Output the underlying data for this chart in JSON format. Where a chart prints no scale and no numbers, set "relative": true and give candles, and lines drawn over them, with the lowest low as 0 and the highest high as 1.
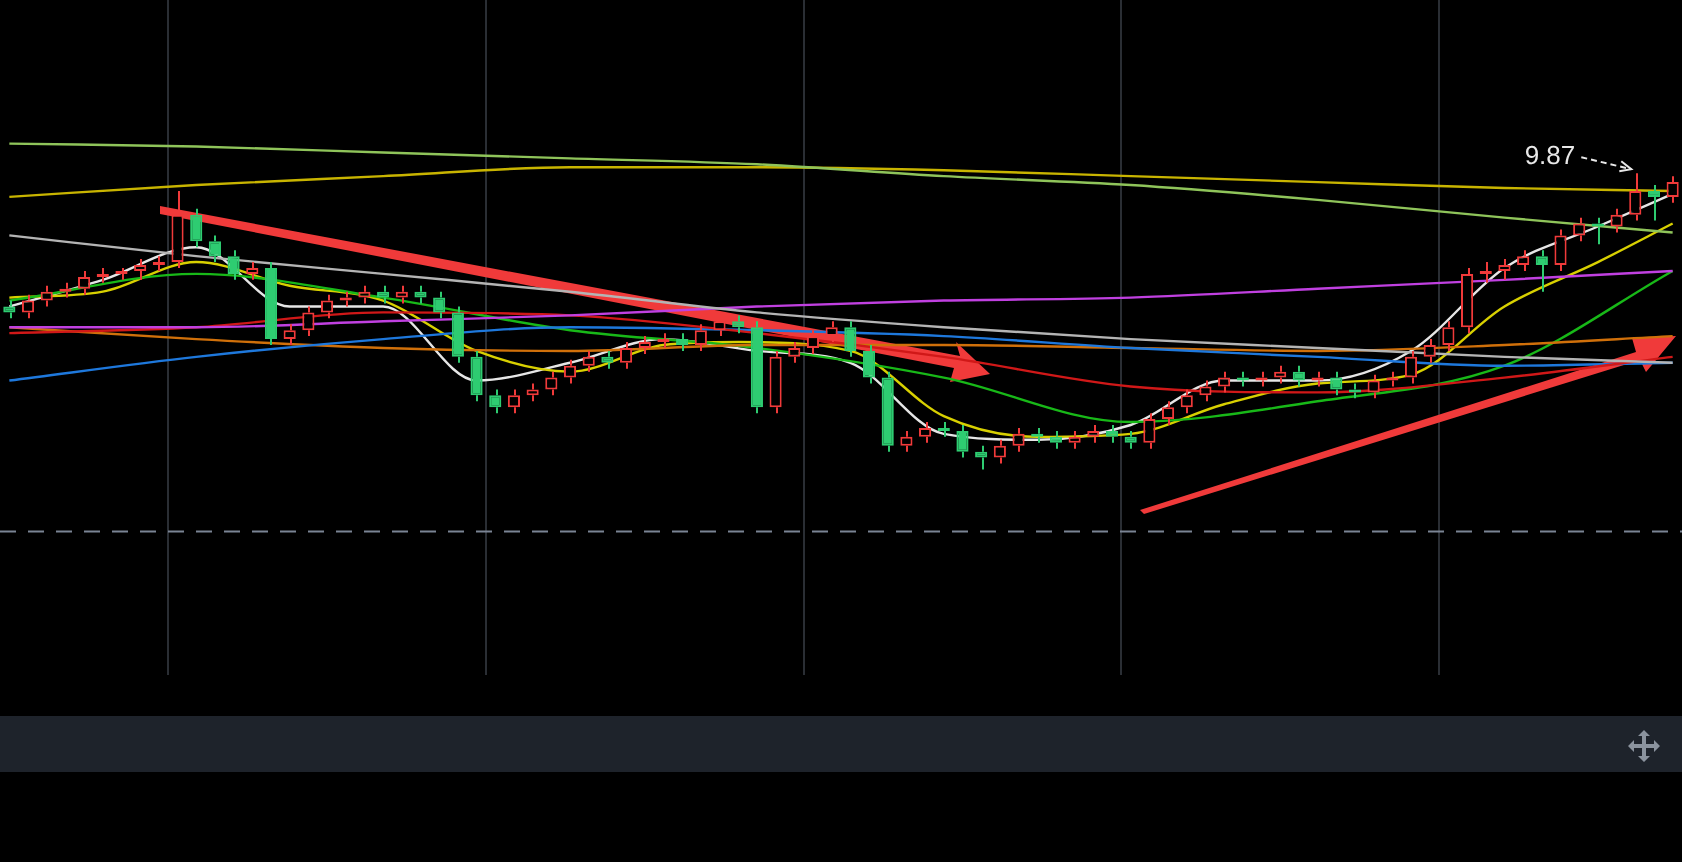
{
  "chart_data": {
    "type": "candlestick",
    "relative": true,
    "grid": "x",
    "legend": false,
    "categories": [
      null,
      null,
      null,
      null,
      null,
      null,
      null,
      null,
      null,
      null,
      null,
      null,
      null,
      null,
      null,
      null,
      null,
      null,
      null,
      null,
      null,
      null,
      null,
      null,
      null,
      null,
      null,
      null,
      null,
      null,
      null,
      null,
      null,
      null,
      null,
      null,
      null,
      null,
      null,
      null,
      null,
      null,
      null,
      null,
      null,
      null,
      null,
      null,
      null,
      null,
      null,
      null,
      null,
      null,
      null,
      null,
      null,
      null,
      null,
      null,
      null,
      null,
      null,
      null,
      null,
      null,
      null,
      null,
      null,
      null,
      null,
      null,
      null,
      null,
      null,
      null,
      null,
      null,
      null,
      null,
      null,
      null,
      null,
      null,
      null,
      null,
      null,
      null,
      null,
      null
    ],
    "ohlc": [
      [
        0.55,
        0.57,
        0.51,
        0.53
      ],
      [
        0.53,
        0.59,
        0.51,
        0.57
      ],
      [
        0.57,
        0.62,
        0.55,
        0.6
      ],
      [
        0.6,
        0.63,
        0.58,
        0.61
      ],
      [
        0.61,
        0.67,
        0.59,
        0.65
      ],
      [
        0.65,
        0.68,
        0.63,
        0.66
      ],
      [
        0.66,
        0.68,
        0.64,
        0.67
      ],
      [
        0.67,
        0.71,
        0.64,
        0.69
      ],
      [
        0.69,
        0.72,
        0.67,
        0.7
      ],
      [
        0.7,
        0.94,
        0.68,
        0.86
      ],
      [
        0.86,
        0.88,
        0.75,
        0.77
      ],
      [
        0.77,
        0.79,
        0.7,
        0.72
      ],
      [
        0.72,
        0.74,
        0.64,
        0.66
      ],
      [
        0.66,
        0.7,
        0.64,
        0.68
      ],
      [
        0.68,
        0.7,
        0.42,
        0.44
      ],
      [
        0.44,
        0.49,
        0.42,
        0.47
      ],
      [
        0.47,
        0.55,
        0.45,
        0.53
      ],
      [
        0.53,
        0.59,
        0.51,
        0.57
      ],
      [
        0.57,
        0.6,
        0.55,
        0.58
      ],
      [
        0.58,
        0.62,
        0.56,
        0.6
      ],
      [
        0.6,
        0.62,
        0.56,
        0.58
      ],
      [
        0.58,
        0.62,
        0.56,
        0.6
      ],
      [
        0.6,
        0.62,
        0.56,
        0.58
      ],
      [
        0.58,
        0.6,
        0.51,
        0.53
      ],
      [
        0.53,
        0.55,
        0.36,
        0.38
      ],
      [
        0.38,
        0.4,
        0.23,
        0.25
      ],
      [
        0.25,
        0.27,
        0.19,
        0.21
      ],
      [
        0.21,
        0.27,
        0.19,
        0.25
      ],
      [
        0.25,
        0.29,
        0.23,
        0.27
      ],
      [
        0.27,
        0.33,
        0.25,
        0.31
      ],
      [
        0.31,
        0.37,
        0.29,
        0.35
      ],
      [
        0.35,
        0.4,
        0.33,
        0.38
      ],
      [
        0.38,
        0.4,
        0.34,
        0.36
      ],
      [
        0.36,
        0.43,
        0.34,
        0.41
      ],
      [
        0.41,
        0.45,
        0.39,
        0.43
      ],
      [
        0.43,
        0.46,
        0.41,
        0.44
      ],
      [
        0.44,
        0.46,
        0.4,
        0.42
      ],
      [
        0.42,
        0.49,
        0.4,
        0.47
      ],
      [
        0.47,
        0.52,
        0.45,
        0.5
      ],
      [
        0.5,
        0.52,
        0.46,
        0.48
      ],
      [
        0.48,
        0.5,
        0.19,
        0.21
      ],
      [
        0.21,
        0.4,
        0.19,
        0.38
      ],
      [
        0.38,
        0.43,
        0.36,
        0.41
      ],
      [
        0.41,
        0.47,
        0.39,
        0.45
      ],
      [
        0.45,
        0.5,
        0.43,
        0.48
      ],
      [
        0.48,
        0.5,
        0.38,
        0.4
      ],
      [
        0.4,
        0.42,
        0.29,
        0.31
      ],
      [
        0.31,
        0.33,
        0.06,
        0.08
      ],
      [
        0.08,
        0.13,
        0.06,
        0.11
      ],
      [
        0.11,
        0.16,
        0.09,
        0.14
      ],
      [
        0.14,
        0.16,
        0.11,
        0.13
      ],
      [
        0.13,
        0.15,
        0.04,
        0.06
      ],
      [
        0.06,
        0.08,
        0.0,
        0.04
      ],
      [
        0.04,
        0.1,
        0.02,
        0.08
      ],
      [
        0.08,
        0.14,
        0.06,
        0.12
      ],
      [
        0.12,
        0.14,
        0.09,
        0.11
      ],
      [
        0.11,
        0.13,
        0.07,
        0.09
      ],
      [
        0.09,
        0.13,
        0.07,
        0.11
      ],
      [
        0.11,
        0.15,
        0.09,
        0.13
      ],
      [
        0.13,
        0.15,
        0.09,
        0.11
      ],
      [
        0.11,
        0.13,
        0.07,
        0.09
      ],
      [
        0.09,
        0.19,
        0.07,
        0.17
      ],
      [
        0.17,
        0.23,
        0.15,
        0.21
      ],
      [
        0.21,
        0.27,
        0.19,
        0.25
      ],
      [
        0.25,
        0.3,
        0.23,
        0.28
      ],
      [
        0.28,
        0.33,
        0.26,
        0.31
      ],
      [
        0.31,
        0.33,
        0.28,
        0.3
      ],
      [
        0.3,
        0.33,
        0.28,
        0.31
      ],
      [
        0.31,
        0.35,
        0.29,
        0.33
      ],
      [
        0.33,
        0.35,
        0.28,
        0.3
      ],
      [
        0.3,
        0.33,
        0.28,
        0.31
      ],
      [
        0.31,
        0.33,
        0.25,
        0.27
      ],
      [
        0.27,
        0.29,
        0.24,
        0.26
      ],
      [
        0.26,
        0.32,
        0.24,
        0.3
      ],
      [
        0.3,
        0.33,
        0.28,
        0.31
      ],
      [
        0.31,
        0.4,
        0.29,
        0.38
      ],
      [
        0.38,
        0.44,
        0.36,
        0.42
      ],
      [
        0.42,
        0.5,
        0.4,
        0.48
      ],
      [
        0.48,
        0.68,
        0.46,
        0.66
      ],
      [
        0.66,
        0.7,
        0.63,
        0.67
      ],
      [
        0.67,
        0.71,
        0.64,
        0.69
      ],
      [
        0.69,
        0.74,
        0.67,
        0.72
      ],
      [
        0.72,
        0.74,
        0.6,
        0.69
      ],
      [
        0.69,
        0.81,
        0.67,
        0.79
      ],
      [
        0.79,
        0.85,
        0.77,
        0.83
      ],
      [
        0.83,
        0.85,
        0.76,
        0.82
      ],
      [
        0.82,
        0.88,
        0.8,
        0.86
      ],
      [
        0.86,
        1.0,
        0.84,
        0.94
      ],
      [
        0.94,
        0.96,
        0.84,
        0.92
      ],
      [
        0.92,
        0.99,
        0.9,
        0.97
      ]
    ],
    "series": [
      {
        "type": "line",
        "color": "#8fc45a",
        "values": [
          1.1,
          null,
          null,
          null,
          null,
          null,
          null,
          null,
          null,
          null,
          1.09,
          null,
          null,
          null,
          null,
          null,
          null,
          null,
          null,
          null,
          1.07,
          null,
          null,
          null,
          null,
          null,
          null,
          null,
          null,
          null,
          1.05,
          null,
          null,
          null,
          null,
          null,
          null,
          null,
          null,
          null,
          1.03,
          null,
          null,
          null,
          null,
          null,
          null,
          null,
          null,
          null,
          0.99,
          null,
          null,
          null,
          null,
          null,
          null,
          null,
          null,
          null,
          0.96,
          null,
          null,
          null,
          null,
          null,
          null,
          null,
          null,
          null,
          0.91,
          null,
          null,
          null,
          null,
          null,
          null,
          null,
          null,
          null,
          0.85,
          null,
          null,
          null,
          null,
          null,
          null,
          null,
          null,
          0.8
        ]
      },
      {
        "type": "line",
        "color": "#c8b400",
        "values": [
          0.92,
          null,
          null,
          null,
          null,
          null,
          null,
          null,
          null,
          null,
          0.96,
          null,
          null,
          null,
          null,
          null,
          null,
          null,
          null,
          null,
          0.99,
          null,
          null,
          null,
          null,
          null,
          null,
          null,
          null,
          null,
          1.02,
          null,
          null,
          null,
          null,
          null,
          null,
          null,
          null,
          null,
          1.02,
          null,
          null,
          null,
          null,
          null,
          null,
          null,
          null,
          null,
          1.01,
          null,
          null,
          null,
          null,
          null,
          null,
          null,
          null,
          null,
          0.99,
          null,
          null,
          null,
          null,
          null,
          null,
          null,
          null,
          null,
          0.97,
          null,
          null,
          null,
          null,
          null,
          null,
          null,
          null,
          null,
          0.95,
          null,
          null,
          null,
          null,
          null,
          null,
          null,
          null,
          0.94
        ]
      },
      {
        "type": "line",
        "color": "#b4b4b4",
        "values": [
          0.79,
          null,
          null,
          null,
          null,
          null,
          null,
          null,
          null,
          null,
          0.72,
          null,
          null,
          null,
          null,
          null,
          null,
          null,
          null,
          null,
          0.66,
          null,
          null,
          null,
          null,
          null,
          null,
          null,
          null,
          null,
          0.6,
          null,
          null,
          null,
          null,
          null,
          null,
          null,
          null,
          null,
          0.53,
          null,
          null,
          null,
          null,
          null,
          null,
          null,
          null,
          null,
          0.48,
          null,
          null,
          null,
          null,
          null,
          null,
          null,
          null,
          null,
          0.44,
          null,
          null,
          null,
          null,
          null,
          null,
          null,
          null,
          null,
          0.41,
          null,
          null,
          null,
          null,
          null,
          null,
          null,
          null,
          null,
          0.38,
          null,
          null,
          null,
          null,
          null,
          null,
          null,
          null,
          0.36
        ]
      },
      {
        "type": "line",
        "color": "#c040e0",
        "values": [
          0.48,
          null,
          null,
          null,
          null,
          null,
          null,
          null,
          null,
          null,
          0.48,
          null,
          null,
          null,
          null,
          null,
          null,
          null,
          null,
          null,
          0.5,
          null,
          null,
          null,
          null,
          null,
          null,
          null,
          null,
          null,
          0.52,
          null,
          null,
          null,
          null,
          null,
          null,
          null,
          null,
          null,
          0.55,
          null,
          null,
          null,
          null,
          null,
          null,
          null,
          null,
          null,
          0.57,
          null,
          null,
          null,
          null,
          null,
          null,
          null,
          null,
          null,
          0.58,
          null,
          null,
          null,
          null,
          null,
          null,
          null,
          null,
          null,
          0.61,
          null,
          null,
          null,
          null,
          null,
          null,
          null,
          null,
          null,
          0.64,
          null,
          null,
          null,
          null,
          null,
          null,
          null,
          null,
          0.67
        ]
      },
      {
        "type": "line",
        "color": "#d01818",
        "values": [
          0.46,
          null,
          null,
          null,
          null,
          null,
          null,
          null,
          null,
          null,
          0.48,
          null,
          null,
          null,
          null,
          null,
          null,
          null,
          null,
          null,
          0.53,
          null,
          null,
          null,
          null,
          null,
          null,
          null,
          null,
          null,
          0.52,
          null,
          null,
          null,
          null,
          null,
          null,
          null,
          null,
          null,
          0.46,
          null,
          null,
          null,
          null,
          null,
          null,
          null,
          null,
          null,
          0.38,
          null,
          null,
          null,
          null,
          null,
          null,
          null,
          null,
          null,
          0.28,
          null,
          null,
          null,
          null,
          null,
          null,
          null,
          null,
          null,
          0.26,
          null,
          null,
          null,
          null,
          null,
          null,
          null,
          null,
          null,
          0.31,
          null,
          null,
          null,
          null,
          null,
          null,
          null,
          null,
          0.38
        ]
      },
      {
        "type": "line",
        "color": "#1e78dc",
        "values": [
          0.3,
          null,
          null,
          null,
          null,
          null,
          null,
          null,
          null,
          null,
          0.38,
          null,
          null,
          null,
          null,
          null,
          null,
          null,
          null,
          null,
          0.44,
          null,
          null,
          null,
          null,
          null,
          null,
          null,
          null,
          null,
          0.48,
          null,
          null,
          null,
          null,
          null,
          null,
          null,
          null,
          null,
          0.47,
          null,
          null,
          null,
          null,
          null,
          null,
          null,
          null,
          null,
          0.45,
          null,
          null,
          null,
          null,
          null,
          null,
          null,
          null,
          null,
          0.41,
          null,
          null,
          null,
          null,
          null,
          null,
          null,
          null,
          null,
          0.38,
          null,
          null,
          null,
          null,
          null,
          null,
          null,
          null,
          null,
          0.35,
          null,
          null,
          null,
          null,
          null,
          null,
          null,
          null,
          0.36
        ]
      },
      {
        "type": "line",
        "color": "#d0700a",
        "values": [
          0.48,
          null,
          null,
          null,
          null,
          null,
          null,
          null,
          null,
          null,
          0.44,
          null,
          null,
          null,
          null,
          null,
          null,
          null,
          null,
          null,
          0.41,
          null,
          null,
          null,
          null,
          null,
          null,
          null,
          null,
          null,
          0.4,
          null,
          null,
          null,
          null,
          null,
          null,
          null,
          null,
          null,
          0.42,
          null,
          null,
          null,
          null,
          null,
          null,
          null,
          null,
          null,
          0.42,
          null,
          null,
          null,
          null,
          null,
          null,
          null,
          null,
          null,
          0.41,
          null,
          null,
          null,
          null,
          null,
          null,
          null,
          null,
          null,
          0.4,
          null,
          null,
          null,
          null,
          null,
          null,
          null,
          null,
          null,
          0.42,
          null,
          null,
          null,
          null,
          null,
          null,
          null,
          null,
          0.45
        ]
      },
      {
        "type": "line",
        "color": "#18b818",
        "values": [
          0.57,
          null,
          null,
          null,
          null,
          null,
          null,
          null,
          null,
          null,
          0.66,
          null,
          null,
          null,
          null,
          null,
          null,
          null,
          null,
          null,
          0.58,
          null,
          null,
          null,
          null,
          null,
          null,
          null,
          null,
          null,
          0.47,
          null,
          null,
          null,
          null,
          null,
          null,
          null,
          null,
          null,
          0.41,
          null,
          null,
          null,
          null,
          null,
          null,
          null,
          null,
          null,
          0.31,
          null,
          null,
          null,
          null,
          null,
          null,
          null,
          null,
          null,
          0.16,
          null,
          null,
          null,
          null,
          null,
          null,
          null,
          null,
          null,
          0.23,
          null,
          null,
          null,
          null,
          null,
          null,
          null,
          null,
          null,
          0.35,
          null,
          null,
          null,
          null,
          null,
          null,
          null,
          null,
          0.67
        ]
      },
      {
        "type": "line",
        "color": "#d8d000",
        "values": [
          0.58,
          null,
          null,
          null,
          null,
          0.6,
          null,
          null,
          null,
          null,
          0.7,
          null,
          null,
          null,
          null,
          0.62,
          null,
          null,
          null,
          null,
          0.57,
          null,
          null,
          null,
          null,
          0.4,
          null,
          null,
          null,
          null,
          0.33,
          null,
          null,
          null,
          null,
          0.42,
          null,
          null,
          null,
          0.43,
          null,
          null,
          null,
          null,
          null,
          0.4,
          null,
          null,
          null,
          null,
          0.18,
          null,
          null,
          null,
          null,
          0.11,
          null,
          null,
          null,
          null,
          0.12,
          null,
          null,
          null,
          null,
          0.22,
          null,
          null,
          null,
          null,
          0.29,
          null,
          null,
          null,
          null,
          0.32,
          null,
          null,
          null,
          null,
          0.55,
          null,
          null,
          null,
          null,
          0.7,
          null,
          null,
          null,
          0.83
        ]
      },
      {
        "type": "line",
        "color": "#e6e6e6",
        "values": [
          0.55,
          null,
          null,
          null,
          null,
          0.64,
          null,
          null,
          null,
          null,
          0.75,
          null,
          null,
          null,
          null,
          0.55,
          null,
          null,
          null,
          null,
          0.55,
          null,
          null,
          null,
          null,
          0.3,
          null,
          null,
          null,
          null,
          0.36,
          null,
          null,
          null,
          null,
          0.44,
          null,
          null,
          null,
          null,
          0.4,
          null,
          null,
          null,
          null,
          0.36,
          null,
          null,
          null,
          null,
          0.12,
          null,
          null,
          null,
          null,
          0.1,
          null,
          null,
          null,
          null,
          0.15,
          null,
          null,
          null,
          null,
          0.3,
          null,
          null,
          null,
          null,
          0.3,
          null,
          null,
          null,
          null,
          0.4,
          null,
          null,
          null,
          null,
          0.68,
          null,
          null,
          null,
          null,
          0.82,
          null,
          null,
          null,
          0.93
        ]
      }
    ],
    "ref_lines": [
      {
        "axis": "y",
        "value": -0.21,
        "color": "#7a8494",
        "line_style": "dashed"
      }
    ],
    "annotations": [
      "9.87"
    ]
  }
}
